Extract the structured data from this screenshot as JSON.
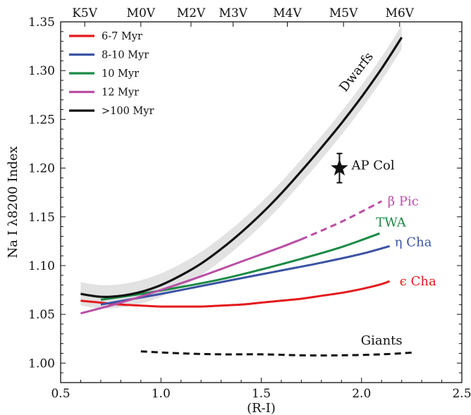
{
  "chart_data": {
    "type": "line",
    "title": "",
    "xlabel": "(R-I)",
    "ylabel": "Na I λ8200 Index",
    "xlim": [
      0.5,
      2.5
    ],
    "ylim": [
      0.98,
      1.35
    ],
    "xticks": [
      0.5,
      1.0,
      1.5,
      2.0,
      2.5
    ],
    "xtick_labels": [
      "0.5",
      "1.0",
      "1.5",
      "2.0",
      "2.5"
    ],
    "yticks": [
      1.0,
      1.05,
      1.1,
      1.15,
      1.2,
      1.25,
      1.3,
      1.35
    ],
    "ytick_labels": [
      "1.00",
      "1.05",
      "1.10",
      "1.15",
      "1.20",
      "1.25",
      "1.30",
      "1.35"
    ],
    "top_axis": {
      "ticks": [
        0.62,
        0.9,
        1.15,
        1.36,
        1.63,
        1.91,
        2.19
      ],
      "labels": [
        "K5V",
        "M0V",
        "M2V",
        "M3V",
        "M4V",
        "M5V",
        "M6V"
      ]
    },
    "grid": false,
    "legend": {
      "placement": "top-left",
      "entries": [
        "6-7 Myr",
        "8-10 Myr",
        "10 Myr",
        "12 Myr",
        ">100 Myr"
      ]
    },
    "series": [
      {
        "name": "6-7 Myr",
        "label": "ϵ Cha",
        "color": "#e41a1c",
        "x": [
          0.6,
          0.7,
          0.8,
          0.9,
          1.0,
          1.1,
          1.2,
          1.3,
          1.4,
          1.5,
          1.6,
          1.7,
          1.8,
          1.9,
          2.0,
          2.1,
          2.14
        ],
        "y": [
          1.064,
          1.062,
          1.06,
          1.059,
          1.058,
          1.058,
          1.058,
          1.059,
          1.06,
          1.062,
          1.064,
          1.066,
          1.069,
          1.072,
          1.076,
          1.081,
          1.084
        ]
      },
      {
        "name": "8-10 Myr",
        "label": "η Cha",
        "color": "#3a53a4",
        "x": [
          0.7,
          1.0,
          1.2,
          1.4,
          1.6,
          1.8,
          2.0,
          2.14
        ],
        "y": [
          1.06,
          1.071,
          1.079,
          1.087,
          1.095,
          1.103,
          1.112,
          1.12
        ]
      },
      {
        "name": "10 Myr",
        "label": "TWA",
        "color": "#1b8a45",
        "x": [
          0.7,
          0.9,
          1.1,
          1.3,
          1.5,
          1.7,
          1.9,
          2.09
        ],
        "y": [
          1.065,
          1.071,
          1.078,
          1.086,
          1.096,
          1.107,
          1.119,
          1.133
        ]
      },
      {
        "name": "12 Myr",
        "label": "β Pic",
        "color": "#b94fa6",
        "x": [
          0.6,
          0.8,
          1.0,
          1.2,
          1.4,
          1.6,
          1.7,
          1.9,
          2.1
        ],
        "y": [
          1.051,
          1.062,
          1.075,
          1.089,
          1.104,
          1.119,
          1.127,
          1.145,
          1.166
        ],
        "dashed_from_x": 1.7
      },
      {
        "name": ">100 Myr",
        "label": "Dwarfs",
        "color": "#111111",
        "band_width": 0.012,
        "x": [
          0.6,
          0.7,
          0.8,
          0.9,
          1.0,
          1.1,
          1.2,
          1.3,
          1.4,
          1.5,
          1.6,
          1.7,
          1.8,
          1.9,
          2.0,
          2.1,
          2.2
        ],
        "y": [
          1.071,
          1.068,
          1.069,
          1.073,
          1.08,
          1.09,
          1.102,
          1.117,
          1.134,
          1.153,
          1.174,
          1.197,
          1.221,
          1.246,
          1.273,
          1.302,
          1.334
        ]
      },
      {
        "name": "Giants",
        "label": "Giants",
        "color": "#111111",
        "dashed": true,
        "x": [
          0.9,
          1.1,
          1.3,
          1.5,
          1.7,
          1.9,
          2.1,
          2.27
        ],
        "y": [
          1.012,
          1.01,
          1.009,
          1.009,
          1.008,
          1.008,
          1.009,
          1.011
        ]
      }
    ],
    "points": [
      {
        "label": "AP Col",
        "x": 1.89,
        "y": 1.2,
        "yerr": 0.015,
        "marker": "star"
      }
    ]
  }
}
